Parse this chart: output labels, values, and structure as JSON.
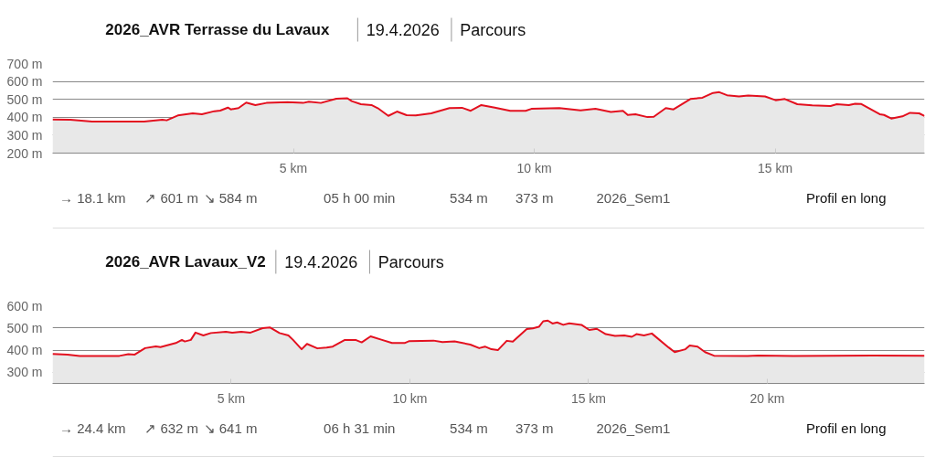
{
  "chart_data": [
    {
      "type": "area",
      "title": "2026_AVR Terrasse du Lavaux",
      "annotations": [
        "19.4.2026",
        "Parcours",
        "→ 18.1 km",
        "↗ 601 m",
        "↘ 584 m",
        "05 h 00 min",
        "534 m",
        "373 m",
        "2026_Sem1",
        "Profil en long"
      ],
      "x": [
        0,
        0.37,
        0.82,
        1.9,
        2.28,
        2.37,
        2.6,
        2.91,
        3.1,
        3.36,
        3.48,
        3.64,
        3.7,
        3.86,
        4.02,
        4.21,
        4.44,
        4.88,
        5.2,
        5.32,
        5.57,
        5.89,
        6.12,
        6.21,
        6.4,
        6.62,
        6.75,
        6.97,
        7.15,
        7.35,
        7.54,
        7.86,
        8.24,
        8.5,
        8.68,
        8.9,
        9.18,
        9.5,
        9.82,
        9.94,
        10.52,
        10.96,
        11.27,
        11.59,
        11.84,
        11.94,
        12.1,
        12.35,
        12.48,
        12.73,
        12.89,
        13.24,
        13.49,
        13.71,
        13.84,
        14.0,
        14.25,
        14.44,
        14.79,
        15.01,
        15.2,
        15.46,
        15.77,
        16.15,
        16.28,
        16.53,
        16.66,
        16.79,
        17.17,
        17.26,
        17.41,
        17.64,
        17.8,
        17.99,
        18.1
      ],
      "series": [
        {
          "color": "#e3101f",
          "values": [
            388,
            386,
            376,
            376,
            386,
            383,
            410,
            422,
            417,
            434,
            437,
            454,
            444,
            451,
            482,
            468,
            480,
            485,
            480,
            487,
            480,
            504,
            506,
            490,
            473,
            468,
            451,
            408,
            432,
            412,
            410,
            422,
            451,
            453,
            436,
            468,
            454,
            436,
            436,
            447,
            451,
            439,
            447,
            430,
            436,
            413,
            417,
            401,
            403,
            451,
            444,
            502,
            509,
            536,
            540,
            523,
            516,
            521,
            516,
            495,
            502,
            473,
            466,
            463,
            473,
            468,
            476,
            474,
            417,
            413,
            393,
            405,
            425,
            422,
            407
          ]
        }
      ],
      "xlim": [
        0,
        18.1
      ],
      "ylim": [
        200,
        700
      ],
      "xticks": [
        {
          "value": 5,
          "label": "5 km"
        },
        {
          "value": 10,
          "label": "10 km"
        },
        {
          "value": 15,
          "label": "15 km"
        }
      ],
      "yticks": [
        {
          "value": 200,
          "label": "200 m"
        },
        {
          "value": 300,
          "label": "300 m"
        },
        {
          "value": 400,
          "label": "400 m"
        },
        {
          "value": 500,
          "label": "500 m"
        },
        {
          "value": 600,
          "label": "600 m"
        },
        {
          "value": 700,
          "label": "700 m"
        }
      ],
      "grid": "y"
    },
    {
      "type": "area",
      "title": "2026_AVR Lavaux_V2",
      "annotations": [
        "19.4.2026",
        "Parcours",
        "→ 24.4 km",
        "↗ 632 m",
        "↘ 641 m",
        "06 h 31 min",
        "534 m",
        "373 m",
        "2026_Sem1",
        "Profil en long"
      ],
      "x": [
        0,
        0.42,
        0.76,
        1.87,
        2.12,
        2.3,
        2.59,
        2.89,
        3.02,
        3.45,
        3.62,
        3.7,
        3.87,
        4.0,
        4.22,
        4.43,
        4.85,
        5.03,
        5.28,
        5.54,
        5.88,
        6.09,
        6.35,
        6.6,
        6.73,
        6.97,
        7.12,
        7.41,
        7.67,
        7.84,
        8.18,
        8.48,
        8.65,
        8.9,
        9.2,
        9.5,
        9.85,
        9.97,
        10.66,
        10.91,
        11.25,
        11.69,
        11.94,
        12.1,
        12.28,
        12.46,
        12.71,
        12.88,
        13.27,
        13.44,
        13.61,
        13.73,
        13.86,
        13.99,
        14.12,
        14.29,
        14.46,
        14.8,
        15.02,
        15.23,
        15.48,
        15.74,
        16.0,
        16.21,
        16.34,
        16.55,
        16.77,
        17.24,
        17.41,
        17.71,
        17.83,
        18.05,
        18.26,
        18.51,
        19.45,
        19.75,
        20.73,
        22.95,
        24.4
      ],
      "series": [
        {
          "color": "#e3101f",
          "values": [
            383,
            380,
            374,
            374,
            382,
            380,
            409,
            417,
            414,
            432,
            446,
            439,
            446,
            479,
            466,
            477,
            483,
            479,
            483,
            479,
            499,
            502,
            477,
            466,
            446,
            404,
            428,
            408,
            412,
            416,
            446,
            446,
            435,
            462,
            447,
            432,
            432,
            440,
            443,
            436,
            439,
            425,
            409,
            416,
            404,
            400,
            442,
            438,
            495,
            498,
            505,
            530,
            533,
            520,
            525,
            514,
            521,
            514,
            491,
            496,
            472,
            464,
            466,
            460,
            472,
            466,
            475,
            412,
            391,
            404,
            421,
            416,
            391,
            375,
            374,
            376,
            374,
            376,
            375
          ]
        }
      ],
      "xlim": [
        0,
        24.4
      ],
      "ylim": [
        250,
        600
      ],
      "xticks": [
        {
          "value": 5,
          "label": "5 km"
        },
        {
          "value": 10,
          "label": "10 km"
        },
        {
          "value": 15,
          "label": "15 km"
        },
        {
          "value": 20,
          "label": "20 km"
        }
      ],
      "yticks": [
        {
          "value": 300,
          "label": "300 m"
        },
        {
          "value": 400,
          "label": "400 m"
        },
        {
          "value": 500,
          "label": "500 m"
        },
        {
          "value": 600,
          "label": "600 m"
        }
      ],
      "grid": "y"
    }
  ]
}
